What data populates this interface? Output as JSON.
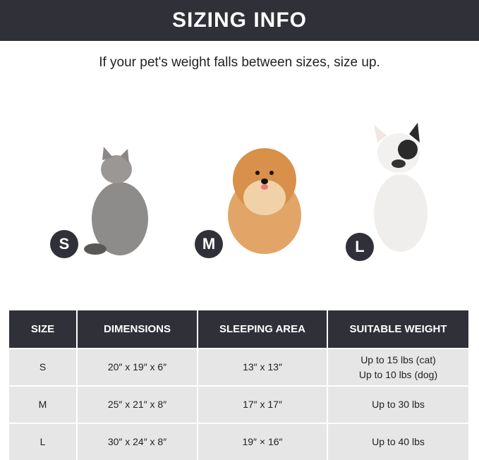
{
  "banner_title": "SIZING INFO",
  "subtitle": "If your pet's weight falls between sizes, size up.",
  "sizes": [
    {
      "badge": "S",
      "animal": "cat"
    },
    {
      "badge": "M",
      "animal": "pomeranian"
    },
    {
      "badge": "L",
      "animal": "french-bulldog"
    }
  ],
  "table": {
    "headers": [
      "SIZE",
      "DIMENSIONS",
      "SLEEPING AREA",
      "SUITABLE WEIGHT"
    ],
    "rows": [
      {
        "size": "S",
        "dimensions": "20″ x 19″ x 6″",
        "sleeping_area": "13″ x 13″",
        "weight": [
          "Up to 15 lbs (cat)",
          "Up to 10 lbs (dog)"
        ]
      },
      {
        "size": "M",
        "dimensions": "25″ x 21″ x 8″",
        "sleeping_area": "17″ x 17″",
        "weight": [
          "Up to 30 lbs"
        ]
      },
      {
        "size": "L",
        "dimensions": "30″ x 24″ x 8″",
        "sleeping_area": "19″ × 16″",
        "weight": [
          "Up to 40 lbs"
        ]
      }
    ]
  },
  "colors": {
    "header": "#2f3038",
    "cell": "#e6e6e6"
  }
}
